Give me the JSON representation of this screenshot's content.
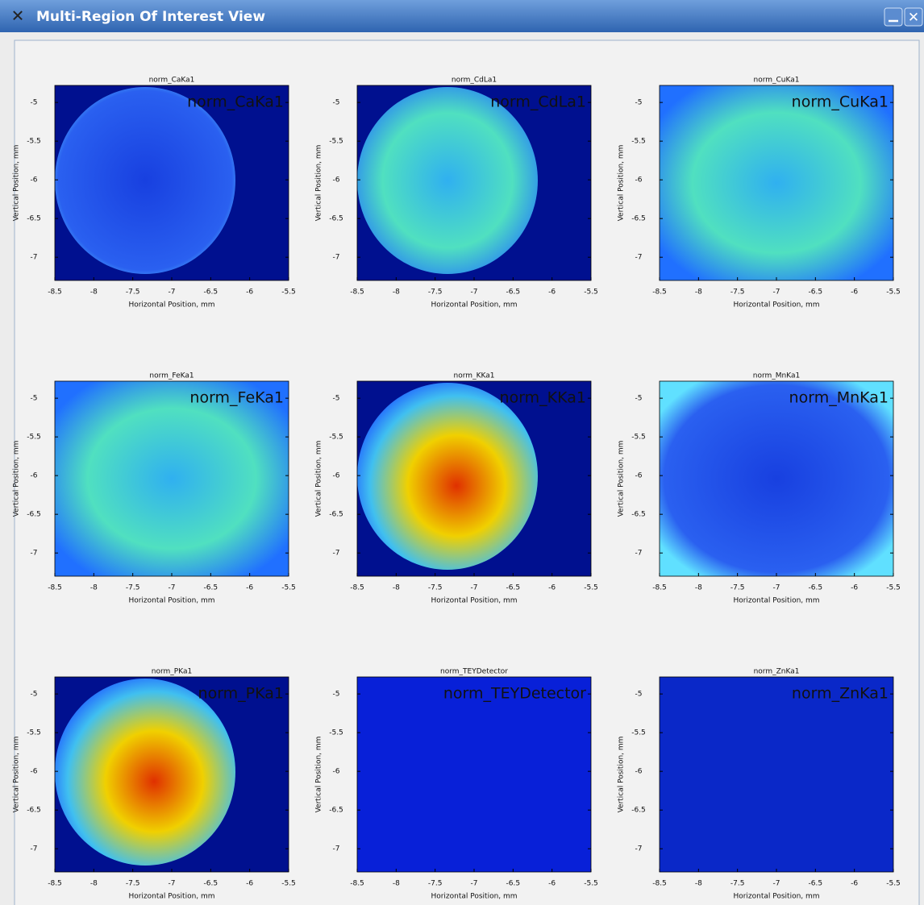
{
  "window": {
    "title": "Multi-Region Of Interest View"
  },
  "panels": [
    {
      "type": "heatmap",
      "title": "norm_CaKa1",
      "xlabel": "Horizontal Position, mm",
      "ylabel": "Vertical Position, mm",
      "xlim": [
        -8.5,
        -5.5
      ],
      "ylim": [
        -7.3,
        -4.78
      ],
      "xticks": [
        -8.5,
        -8,
        -7.5,
        -7,
        -6.5,
        -6,
        -5.5
      ],
      "yticks": [
        -5,
        -5.5,
        -6,
        -6.5,
        -7
      ]
    },
    {
      "type": "heatmap",
      "title": "norm_CdLa1",
      "xlabel": "Horizontal Position, mm",
      "ylabel": "Vertical Position, mm",
      "xlim": [
        -8.5,
        -5.5
      ],
      "ylim": [
        -7.3,
        -4.78
      ],
      "xticks": [
        -8.5,
        -8,
        -7.5,
        -7,
        -6.5,
        -6,
        -5.5
      ],
      "yticks": [
        -5,
        -5.5,
        -6,
        -6.5,
        -7
      ]
    },
    {
      "type": "heatmap",
      "title": "norm_CuKa1",
      "xlabel": "Horizontal Position, mm",
      "ylabel": "Vertical Position, mm",
      "xlim": [
        -8.5,
        -5.5
      ],
      "ylim": [
        -7.3,
        -4.78
      ],
      "xticks": [
        -8.5,
        -8,
        -7.5,
        -7,
        -6.5,
        -6,
        -5.5
      ],
      "yticks": [
        -5,
        -5.5,
        -6,
        -6.5,
        -7
      ]
    },
    {
      "type": "heatmap",
      "title": "norm_FeKa1",
      "xlabel": "Horizontal Position, mm",
      "ylabel": "Vertical Position, mm",
      "xlim": [
        -8.5,
        -5.5
      ],
      "ylim": [
        -7.3,
        -4.78
      ],
      "xticks": [
        -8.5,
        -8,
        -7.5,
        -7,
        -6.5,
        -6,
        -5.5
      ],
      "yticks": [
        -5,
        -5.5,
        -6,
        -6.5,
        -7
      ]
    },
    {
      "type": "heatmap",
      "title": "norm_KKa1",
      "xlabel": "Horizontal Position, mm",
      "ylabel": "Vertical Position, mm",
      "xlim": [
        -8.5,
        -5.5
      ],
      "ylim": [
        -7.3,
        -4.78
      ],
      "xticks": [
        -8.5,
        -8,
        -7.5,
        -7,
        -6.5,
        -6,
        -5.5
      ],
      "yticks": [
        -5,
        -5.5,
        -6,
        -6.5,
        -7
      ]
    },
    {
      "type": "heatmap",
      "title": "norm_MnKa1",
      "xlabel": "Horizontal Position, mm",
      "ylabel": "Vertical Position, mm",
      "xlim": [
        -8.5,
        -5.5
      ],
      "ylim": [
        -7.3,
        -4.78
      ],
      "xticks": [
        -8.5,
        -8,
        -7.5,
        -7,
        -6.5,
        -6,
        -5.5
      ],
      "yticks": [
        -5,
        -5.5,
        -6,
        -6.5,
        -7
      ]
    },
    {
      "type": "heatmap",
      "title": "norm_PKa1",
      "xlabel": "Horizontal Position, mm",
      "ylabel": "Vertical Position, mm",
      "xlim": [
        -8.5,
        -5.5
      ],
      "ylim": [
        -7.3,
        -4.78
      ],
      "xticks": [
        -8.5,
        -8,
        -7.5,
        -7,
        -6.5,
        -6,
        -5.5
      ],
      "yticks": [
        -5,
        -5.5,
        -6,
        -6.5,
        -7
      ]
    },
    {
      "type": "heatmap",
      "title": "norm_TEYDetector",
      "xlabel": "Horizontal Position, mm",
      "ylabel": "Vertical Position, mm",
      "xlim": [
        -8.5,
        -5.5
      ],
      "ylim": [
        -7.3,
        -4.78
      ],
      "xticks": [
        -8.5,
        -8,
        -7.5,
        -7,
        -6.5,
        -6,
        -5.5
      ],
      "yticks": [
        -5,
        -5.5,
        -6,
        -6.5,
        -7
      ]
    },
    {
      "type": "heatmap",
      "title": "norm_ZnKa1",
      "xlabel": "Horizontal Position, mm",
      "ylabel": "Vertical Position, mm",
      "xlim": [
        -8.5,
        -5.5
      ],
      "ylim": [
        -7.3,
        -4.78
      ],
      "xticks": [
        -8.5,
        -8,
        -7.5,
        -7,
        -6.5,
        -6,
        -5.5
      ],
      "yticks": [
        -5,
        -5.5,
        -6,
        -6.5,
        -7
      ]
    }
  ]
}
